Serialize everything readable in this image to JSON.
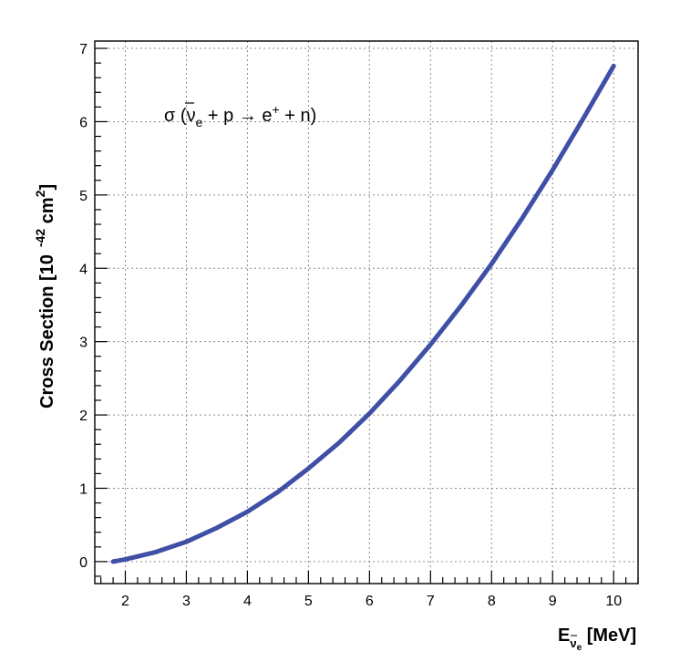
{
  "chart_data": {
    "type": "line",
    "title": "",
    "annotation": {
      "prefix": "σ (",
      "nu_bar": "ν",
      "nu_sub": "e",
      "middle1": " + p → e",
      "plus_sup": "+",
      "middle2": " + n)"
    },
    "xlabel": {
      "main": "E",
      "sub_nu": "ν",
      "sub_sub": "e",
      "unit": " [MeV]"
    },
    "ylabel": {
      "main": "Cross Section [10",
      "exp": "-42",
      "unit": " cm",
      "unit_exp": "2",
      "close": "]"
    },
    "xlim": [
      1.5,
      10.4
    ],
    "ylim": [
      -0.3,
      7.1
    ],
    "x_ticks": [
      2,
      3,
      4,
      5,
      6,
      7,
      8,
      9,
      10
    ],
    "y_ticks": [
      0,
      1,
      2,
      3,
      4,
      5,
      6,
      7
    ],
    "grid": true,
    "series": [
      {
        "color": "#3f4fa6",
        "x": [
          1.8,
          2.0,
          2.5,
          3.0,
          3.5,
          4.0,
          4.5,
          5.0,
          5.5,
          6.0,
          6.5,
          7.0,
          7.5,
          8.0,
          8.5,
          9.0,
          9.5,
          10.0
        ],
        "y": [
          0.0,
          0.03,
          0.13,
          0.27,
          0.46,
          0.68,
          0.95,
          1.27,
          1.62,
          2.02,
          2.47,
          2.96,
          3.49,
          4.06,
          4.68,
          5.34,
          6.04,
          6.76
        ]
      }
    ]
  }
}
